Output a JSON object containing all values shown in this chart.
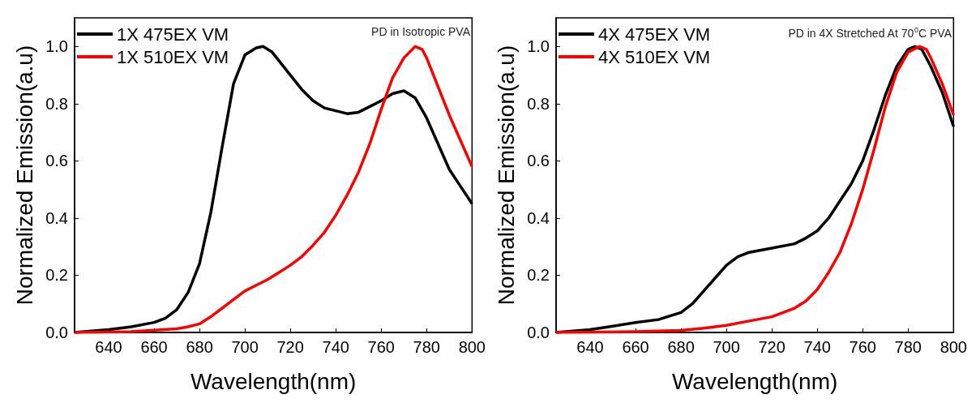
{
  "chart_data": [
    {
      "type": "line",
      "xlabel": "Wavelength(nm)",
      "ylabel": "Normalized Emission(a.u)",
      "annotations": [
        "PD in Isotropic PVA"
      ],
      "xlim": [
        625,
        800
      ],
      "xticks": [
        640,
        660,
        680,
        700,
        720,
        740,
        760,
        780,
        800
      ],
      "ylim": [
        0,
        1.1
      ],
      "yticks": [
        {
          "value": 0,
          "label": "0.0"
        },
        {
          "value": 0.2,
          "label": "0.2"
        },
        {
          "value": 0.4,
          "label": "0.4"
        },
        {
          "value": 0.6,
          "label": "0.6"
        },
        {
          "value": 0.8,
          "label": "0.8"
        },
        {
          "value": 1,
          "label": "1.0"
        }
      ],
      "legend": "top left",
      "grid": false,
      "marker": "none",
      "line_style": "solid",
      "series": [
        {
          "name": "1X 475EX VM",
          "color": "#000000",
          "x": [
            625,
            640,
            650,
            660,
            665,
            670,
            675,
            680,
            685,
            690,
            695,
            700,
            705,
            708,
            712,
            720,
            725,
            730,
            735,
            740,
            745,
            750,
            755,
            760,
            765,
            770,
            775,
            780,
            785,
            790,
            795,
            800
          ],
          "values": [
            0,
            0.01,
            0.02,
            0.035,
            0.05,
            0.08,
            0.14,
            0.24,
            0.42,
            0.65,
            0.87,
            0.97,
            0.995,
            1.0,
            0.98,
            0.9,
            0.85,
            0.81,
            0.785,
            0.775,
            0.765,
            0.77,
            0.79,
            0.81,
            0.835,
            0.845,
            0.82,
            0.75,
            0.66,
            0.57,
            0.51,
            0.45
          ]
        },
        {
          "name": "1X 510EX VM",
          "color": "#ff0000",
          "x": [
            625,
            650,
            660,
            670,
            675,
            680,
            685,
            690,
            695,
            700,
            705,
            710,
            715,
            720,
            725,
            730,
            735,
            740,
            745,
            750,
            755,
            760,
            765,
            770,
            775,
            778,
            780,
            785,
            790,
            795,
            800
          ],
          "values": [
            0,
            0.003,
            0.008,
            0.013,
            0.02,
            0.03,
            0.055,
            0.085,
            0.115,
            0.145,
            0.165,
            0.185,
            0.21,
            0.235,
            0.265,
            0.305,
            0.35,
            0.41,
            0.48,
            0.56,
            0.66,
            0.78,
            0.89,
            0.96,
            1.0,
            0.99,
            0.96,
            0.86,
            0.76,
            0.67,
            0.58
          ]
        }
      ]
    },
    {
      "type": "line",
      "xlabel": "Wavelength(nm)",
      "ylabel": "Normalized Emission(a.u)",
      "annotations": [
        "PD in 4X Stretched At 70$^{0}$C PVA"
      ],
      "xlim": [
        625,
        800
      ],
      "xticks": [
        640,
        660,
        680,
        700,
        720,
        740,
        760,
        780,
        800
      ],
      "ylim": [
        0,
        1.1
      ],
      "yticks": [
        {
          "value": 0,
          "label": "0.0"
        },
        {
          "value": 0.2,
          "label": "0.2"
        },
        {
          "value": 0.4,
          "label": "0.4"
        },
        {
          "value": 0.6,
          "label": "0.6"
        },
        {
          "value": 0.8,
          "label": "0.8"
        },
        {
          "value": 1,
          "label": "1.0"
        }
      ],
      "legend": "top left",
      "grid": false,
      "marker": "none",
      "line_style": "solid",
      "series": [
        {
          "name": "4X 475EX VM",
          "color": "#000000",
          "x": [
            625,
            640,
            650,
            660,
            670,
            680,
            685,
            690,
            695,
            700,
            705,
            710,
            720,
            730,
            735,
            740,
            745,
            750,
            755,
            760,
            765,
            770,
            775,
            780,
            783,
            786,
            790,
            795,
            800
          ],
          "values": [
            0,
            0.01,
            0.022,
            0.035,
            0.045,
            0.07,
            0.1,
            0.145,
            0.19,
            0.235,
            0.265,
            0.28,
            0.295,
            0.31,
            0.33,
            0.355,
            0.4,
            0.46,
            0.52,
            0.6,
            0.71,
            0.83,
            0.93,
            0.99,
            1.0,
            0.99,
            0.93,
            0.84,
            0.72
          ]
        },
        {
          "name": "4X 510EX VM",
          "color": "#ff0000",
          "x": [
            625,
            660,
            680,
            690,
            700,
            710,
            720,
            730,
            735,
            740,
            745,
            750,
            755,
            760,
            765,
            770,
            775,
            780,
            785,
            788,
            790,
            795,
            800
          ],
          "values": [
            0,
            0.003,
            0.007,
            0.015,
            0.025,
            0.04,
            0.055,
            0.085,
            0.11,
            0.15,
            0.21,
            0.28,
            0.38,
            0.5,
            0.64,
            0.79,
            0.91,
            0.98,
            1.0,
            0.99,
            0.96,
            0.87,
            0.76
          ]
        }
      ]
    }
  ]
}
